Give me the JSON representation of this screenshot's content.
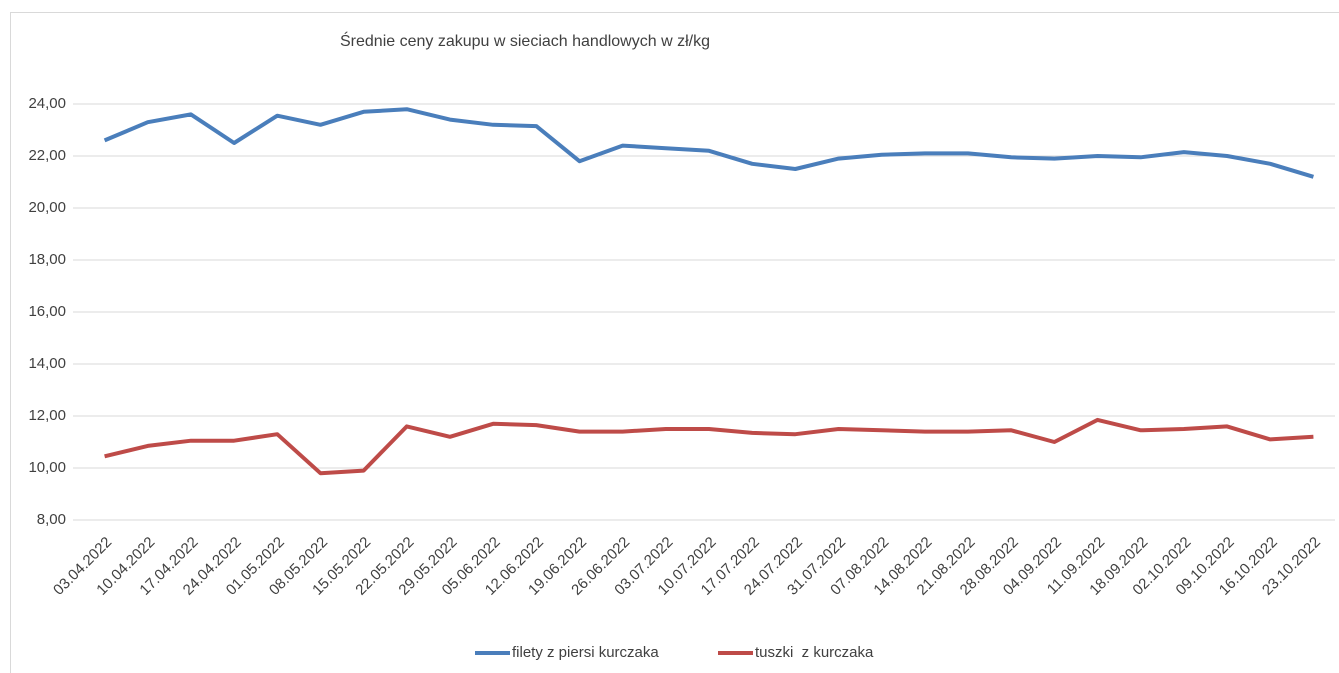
{
  "chart_data": {
    "type": "line",
    "title": "Średnie ceny zakupu w sieciach handlowych w zł/kg",
    "categories": [
      "03.04.2022",
      "10.04.2022",
      "17.04.2022",
      "24.04.2022",
      "01.05.2022",
      "08.05.2022",
      "15.05.2022",
      "22.05.2022",
      "29.05.2022",
      "05.06.2022",
      "12.06.2022",
      "19.06.2022",
      "26.06.2022",
      "03.07.2022",
      "10.07.2022",
      "17.07.2022",
      "24.07.2022",
      "31.07.2022",
      "07.08.2022",
      "14.08.2022",
      "21.08.2022",
      "28.08.2022",
      "04.09.2022",
      "11.09.2022",
      "18.09.2022",
      "02.10.2022",
      "09.10.2022",
      "16.10.2022",
      "23.10.2022"
    ],
    "series": [
      {
        "name": "filety z piersi kurczaka",
        "color": "#4a7ebb",
        "values": [
          22.6,
          23.3,
          23.6,
          22.5,
          23.55,
          23.2,
          23.7,
          23.8,
          23.4,
          23.2,
          23.15,
          21.8,
          22.4,
          22.3,
          22.2,
          21.7,
          21.5,
          21.9,
          22.05,
          22.1,
          22.1,
          21.95,
          21.9,
          22.0,
          21.95,
          22.15,
          22.0,
          21.7,
          21.2
        ]
      },
      {
        "name": "tuszki  z kurczaka",
        "color": "#be4b48",
        "values": [
          10.45,
          10.85,
          11.05,
          11.05,
          11.3,
          9.8,
          9.9,
          11.6,
          11.2,
          11.7,
          11.65,
          11.4,
          11.4,
          11.5,
          11.5,
          11.35,
          11.3,
          11.5,
          11.45,
          11.4,
          11.4,
          11.45,
          11.0,
          11.85,
          11.45,
          11.5,
          11.6,
          11.1,
          11.2
        ]
      }
    ],
    "ylim": [
      8,
      24
    ],
    "yticks": [
      {
        "value": 8,
        "label": "8,00"
      },
      {
        "value": 10,
        "label": "10,00"
      },
      {
        "value": 12,
        "label": "12,00"
      },
      {
        "value": 14,
        "label": "14,00"
      },
      {
        "value": 16,
        "label": "16,00"
      },
      {
        "value": 18,
        "label": "18,00"
      },
      {
        "value": 20,
        "label": "20,00"
      },
      {
        "value": 22,
        "label": "22,00"
      },
      {
        "value": 24,
        "label": "24,00"
      }
    ],
    "grid": true,
    "legend": "bottom"
  }
}
